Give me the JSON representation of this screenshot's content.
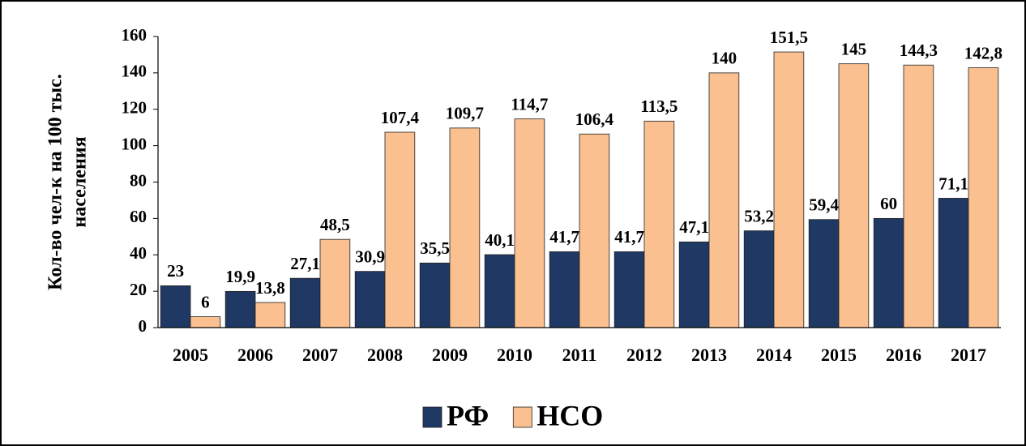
{
  "chart_data": {
    "type": "bar",
    "y_label": [
      "Кол-во чел-к на 100 тыс.",
      "населения"
    ],
    "categories": [
      "2005",
      "2006",
      "2007",
      "2008",
      "2009",
      "2010",
      "2011",
      "2012",
      "2013",
      "2014",
      "2015",
      "2016",
      "2017"
    ],
    "series": [
      {
        "name": "РФ",
        "color": "#1f3864",
        "values": [
          23,
          19.9,
          27.1,
          30.9,
          35.5,
          40.1,
          41.7,
          41.7,
          47.1,
          53.2,
          59.4,
          60,
          71.1
        ],
        "value_labels": [
          "23",
          "19,9",
          "27,1",
          "30,9",
          "35,5",
          "40,1",
          "41,7",
          "41,7",
          "47,1",
          "53,2",
          "59,4",
          "60",
          "71,1"
        ]
      },
      {
        "name": "НСО",
        "color": "#fac090",
        "values": [
          6,
          13.8,
          48.5,
          107.4,
          109.7,
          114.7,
          106.4,
          113.5,
          140,
          151.5,
          145,
          144.3,
          142.8
        ],
        "value_labels": [
          "6",
          "13,8",
          "48,5",
          "107,4",
          "109,7",
          "114,7",
          "106,4",
          "113,5",
          "140",
          "151,5",
          "145",
          "144,3",
          "142,8"
        ]
      }
    ],
    "ylim": [
      0,
      160
    ],
    "yticks": [
      0,
      20,
      40,
      60,
      80,
      100,
      120,
      140,
      160
    ],
    "grid": false,
    "legend": "bottom"
  }
}
